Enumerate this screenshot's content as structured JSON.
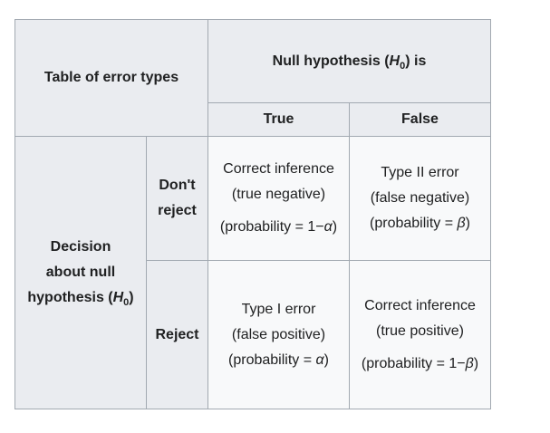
{
  "table": {
    "corner": "Table of error types",
    "null_header": {
      "prefix": "Null hypothesis (",
      "symbol": "H",
      "sub": "0",
      "suffix": ") is"
    },
    "col_true": "True",
    "col_false": "False",
    "decision": {
      "line1": "Decision",
      "line2": "about null",
      "line3_prefix": "hypothesis (",
      "symbol": "H",
      "sub": "0",
      "suffix": ")"
    },
    "row_dont_reject": {
      "line1": "Don't",
      "line2": "reject"
    },
    "row_reject": "Reject",
    "cells": {
      "dr_true": {
        "line1": "Correct inference",
        "line2": "(true negative)",
        "line3_prefix": "(probability = 1−",
        "symbol": "α",
        "line3_suffix": ")"
      },
      "dr_false": {
        "line1": "Type II error",
        "line2": "(false negative)",
        "line3_prefix": "(probability = ",
        "symbol": "β",
        "line3_suffix": ")"
      },
      "r_true": {
        "line1": "Type I error",
        "line2": "(false positive)",
        "line3_prefix": "(probability = ",
        "symbol": "α",
        "line3_suffix": ")"
      },
      "r_false": {
        "line1": "Correct inference",
        "line2": "(true positive)",
        "line3_prefix": "(probability = 1−",
        "symbol": "β",
        "line3_suffix": ")"
      }
    }
  }
}
